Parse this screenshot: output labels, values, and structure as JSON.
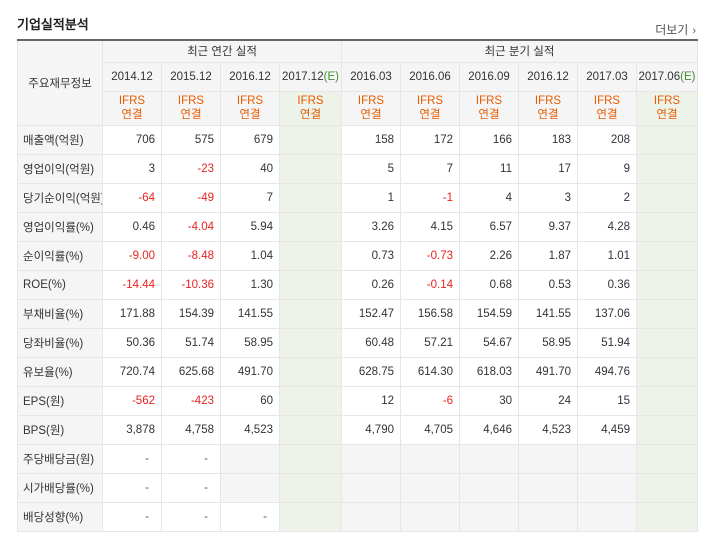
{
  "title": "기업실적분석",
  "more_label": "더보기",
  "header": {
    "row_label": "주요재무정보",
    "annual_group": "최근 연간 실적",
    "quarter_group": "최근 분기 실적",
    "annual_periods": [
      "2014.12",
      "2015.12",
      "2016.12",
      "2017.12(E)"
    ],
    "quarter_periods": [
      "2016.03",
      "2016.06",
      "2016.09",
      "2016.12",
      "2017.03",
      "2017.06(E)"
    ],
    "ifrs_top": "IFRS",
    "ifrs_bottom": "연결"
  },
  "rows": [
    {
      "label": "매출액(억원)",
      "values": [
        "706",
        "575",
        "679",
        "",
        "158",
        "172",
        "166",
        "183",
        "208",
        ""
      ]
    },
    {
      "label": "영업이익(억원)",
      "values": [
        "3",
        "-23",
        "40",
        "",
        "5",
        "7",
        "11",
        "17",
        "9",
        ""
      ]
    },
    {
      "label": "당기순이익(억원)",
      "values": [
        "-64",
        "-49",
        "7",
        "",
        "1",
        "-1",
        "4",
        "3",
        "2",
        ""
      ]
    },
    {
      "label": "영업이익률(%)",
      "values": [
        "0.46",
        "-4.04",
        "5.94",
        "",
        "3.26",
        "4.15",
        "6.57",
        "9.37",
        "4.28",
        ""
      ]
    },
    {
      "label": "순이익률(%)",
      "values": [
        "-9.00",
        "-8.48",
        "1.04",
        "",
        "0.73",
        "-0.73",
        "2.26",
        "1.87",
        "1.01",
        ""
      ]
    },
    {
      "label": "ROE(%)",
      "values": [
        "-14.44",
        "-10.36",
        "1.30",
        "",
        "0.26",
        "-0.14",
        "0.68",
        "0.53",
        "0.36",
        ""
      ]
    },
    {
      "label": "부채비율(%)",
      "values": [
        "171.88",
        "154.39",
        "141.55",
        "",
        "152.47",
        "156.58",
        "154.59",
        "141.55",
        "137.06",
        ""
      ]
    },
    {
      "label": "당좌비율(%)",
      "values": [
        "50.36",
        "51.74",
        "58.95",
        "",
        "60.48",
        "57.21",
        "54.67",
        "58.95",
        "51.94",
        ""
      ]
    },
    {
      "label": "유보율(%)",
      "values": [
        "720.74",
        "625.68",
        "491.70",
        "",
        "628.75",
        "614.30",
        "618.03",
        "491.70",
        "494.76",
        ""
      ]
    },
    {
      "label": "EPS(원)",
      "values": [
        "-562",
        "-423",
        "60",
        "",
        "12",
        "-6",
        "30",
        "24",
        "15",
        ""
      ]
    },
    {
      "label": "BPS(원)",
      "values": [
        "3,878",
        "4,758",
        "4,523",
        "",
        "4,790",
        "4,705",
        "4,646",
        "4,523",
        "4,459",
        ""
      ]
    },
    {
      "label": "주당배당금(원)",
      "values": [
        "-",
        "-",
        "",
        "",
        "",
        "",
        "",
        "",
        "",
        ""
      ]
    },
    {
      "label": "시가배당률(%)",
      "values": [
        "-",
        "-",
        "",
        "",
        "",
        "",
        "",
        "",
        "",
        ""
      ]
    },
    {
      "label": "배당성향(%)",
      "values": [
        "-",
        "-",
        "-",
        "",
        "",
        "",
        "",
        "",
        "",
        ""
      ]
    }
  ]
}
